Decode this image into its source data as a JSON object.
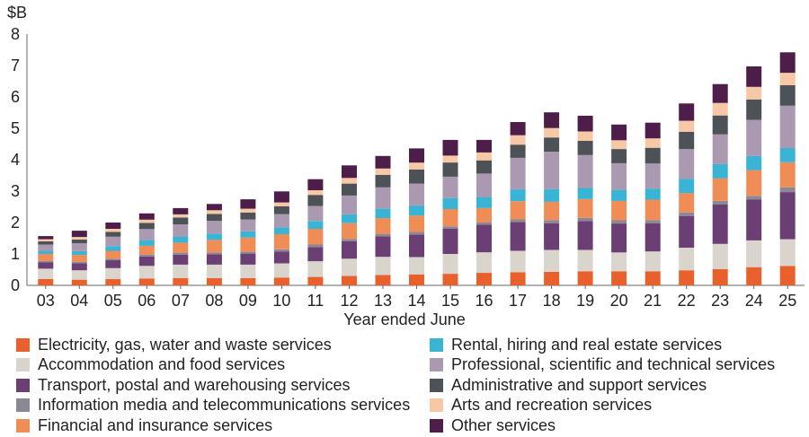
{
  "chart_data": {
    "type": "bar",
    "stacked": true,
    "unit_label": "$B",
    "xlabel": "Year ended June",
    "ylabel": "",
    "ylim": [
      0,
      8
    ],
    "yticks": [
      0,
      1,
      2,
      3,
      4,
      5,
      6,
      7,
      8
    ],
    "grid": false,
    "legend_position": "bottom",
    "categories": [
      "03",
      "04",
      "05",
      "06",
      "07",
      "08",
      "09",
      "10",
      "11",
      "12",
      "13",
      "14",
      "15",
      "16",
      "17",
      "18",
      "19",
      "20",
      "21",
      "22",
      "23",
      "24",
      "25"
    ],
    "series": [
      {
        "name": "Electricity, gas, water and waste services",
        "color": "#e8602c",
        "values": [
          0.2,
          0.18,
          0.2,
          0.22,
          0.23,
          0.23,
          0.23,
          0.25,
          0.27,
          0.3,
          0.33,
          0.35,
          0.37,
          0.4,
          0.42,
          0.43,
          0.45,
          0.45,
          0.45,
          0.48,
          0.52,
          0.58,
          0.62
        ]
      },
      {
        "name": "Accommodation and food services",
        "color": "#d9d4cc",
        "values": [
          0.33,
          0.3,
          0.35,
          0.4,
          0.43,
          0.43,
          0.43,
          0.45,
          0.5,
          0.55,
          0.58,
          0.55,
          0.63,
          0.65,
          0.68,
          0.7,
          0.68,
          0.6,
          0.63,
          0.72,
          0.8,
          0.85,
          0.85
        ]
      },
      {
        "name": "Transport, postal and warehousing services",
        "color": "#6b3f73",
        "values": [
          0.2,
          0.22,
          0.25,
          0.3,
          0.32,
          0.33,
          0.35,
          0.38,
          0.45,
          0.55,
          0.65,
          0.72,
          0.8,
          0.88,
          0.92,
          0.85,
          0.92,
          0.92,
          0.9,
          1.0,
          1.25,
          1.3,
          1.5
        ]
      },
      {
        "name": "Information media and telecommunications services",
        "color": "#8b8793",
        "values": [
          0.05,
          0.05,
          0.05,
          0.06,
          0.06,
          0.06,
          0.06,
          0.07,
          0.08,
          0.08,
          0.08,
          0.08,
          0.08,
          0.08,
          0.08,
          0.1,
          0.1,
          0.1,
          0.1,
          0.12,
          0.12,
          0.12,
          0.15
        ]
      },
      {
        "name": "Financial and insurance services",
        "color": "#f08c55",
        "values": [
          0.22,
          0.22,
          0.25,
          0.28,
          0.32,
          0.4,
          0.45,
          0.48,
          0.5,
          0.5,
          0.5,
          0.52,
          0.55,
          0.45,
          0.58,
          0.58,
          0.6,
          0.62,
          0.65,
          0.62,
          0.72,
          0.82,
          0.8
        ]
      },
      {
        "name": "Rental, hiring and real estate services",
        "color": "#3ab4d4",
        "values": [
          0.1,
          0.12,
          0.15,
          0.18,
          0.2,
          0.2,
          0.2,
          0.22,
          0.25,
          0.28,
          0.3,
          0.32,
          0.35,
          0.35,
          0.38,
          0.4,
          0.35,
          0.35,
          0.35,
          0.45,
          0.45,
          0.45,
          0.45
        ]
      },
      {
        "name": "Professional, scientific and technical services",
        "color": "#ab99b1",
        "values": [
          0.2,
          0.25,
          0.3,
          0.35,
          0.38,
          0.4,
          0.38,
          0.42,
          0.48,
          0.6,
          0.68,
          0.7,
          0.68,
          0.75,
          1.0,
          1.2,
          1.05,
          0.85,
          0.8,
          0.95,
          0.95,
          1.15,
          1.35
        ]
      },
      {
        "name": "Administrative and support services",
        "color": "#4d5257",
        "values": [
          0.1,
          0.12,
          0.15,
          0.2,
          0.22,
          0.22,
          0.22,
          0.25,
          0.35,
          0.38,
          0.4,
          0.45,
          0.45,
          0.42,
          0.42,
          0.45,
          0.45,
          0.45,
          0.5,
          0.55,
          0.6,
          0.65,
          0.65
        ]
      },
      {
        "name": "Arts and recreation services",
        "color": "#f7c8a6",
        "values": [
          0.07,
          0.08,
          0.1,
          0.1,
          0.1,
          0.12,
          0.12,
          0.12,
          0.15,
          0.18,
          0.2,
          0.22,
          0.22,
          0.25,
          0.3,
          0.3,
          0.3,
          0.28,
          0.3,
          0.35,
          0.4,
          0.4,
          0.4
        ]
      },
      {
        "name": "Other services",
        "color": "#4e1e4a",
        "values": [
          0.1,
          0.2,
          0.2,
          0.2,
          0.2,
          0.2,
          0.3,
          0.35,
          0.35,
          0.4,
          0.4,
          0.45,
          0.5,
          0.4,
          0.42,
          0.5,
          0.5,
          0.5,
          0.5,
          0.55,
          0.6,
          0.65,
          0.65
        ]
      }
    ]
  }
}
